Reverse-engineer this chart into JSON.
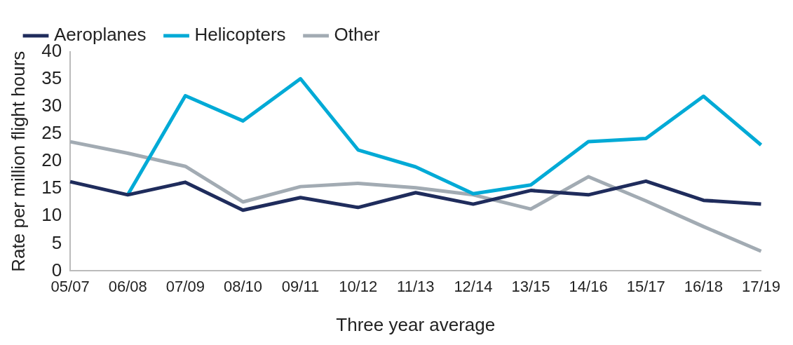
{
  "chart_data": {
    "type": "line",
    "xlabel": "Three year average",
    "ylabel": "Rate per million flight hours",
    "categories": [
      "05/07",
      "06/08",
      "07/09",
      "08/10",
      "09/11",
      "10/12",
      "11/13",
      "12/14",
      "13/15",
      "14/16",
      "15/17",
      "16/18",
      "17/19"
    ],
    "series": [
      {
        "name": "Aeroplanes",
        "color": "#1f2c5c",
        "values": [
          16.3,
          13.9,
          16.2,
          11.1,
          13.4,
          11.6,
          14.3,
          12.2,
          14.7,
          13.9,
          16.4,
          12.9,
          12.2
        ]
      },
      {
        "name": "Helicopters",
        "color": "#00aad6",
        "values": [
          null,
          13.9,
          32.0,
          27.4,
          35.1,
          22.1,
          19.0,
          14.1,
          15.7,
          23.6,
          24.2,
          31.9,
          23.0
        ]
      },
      {
        "name": "Other",
        "color": "#a2abb3",
        "values": [
          23.6,
          21.5,
          19.1,
          12.6,
          15.4,
          16.0,
          15.2,
          13.9,
          11.3,
          17.2,
          12.8,
          8.1,
          3.6
        ]
      }
    ],
    "ylim": [
      0,
      40
    ],
    "yticks": [
      0,
      5,
      10,
      15,
      20,
      25,
      30,
      35,
      40
    ],
    "grid": false,
    "legend": "top left",
    "marker": "none",
    "line_style": "solid"
  }
}
